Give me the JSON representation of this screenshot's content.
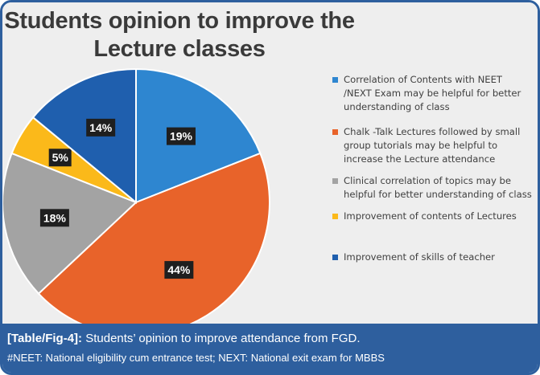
{
  "chart_data": {
    "type": "pie",
    "title": "Students opinion to improve the Lecture classes",
    "legend_position": "right",
    "slices": [
      {
        "label": "Correlation of Contents with NEET /NEXT Exam may be helpful for better understanding of class",
        "value": 19,
        "value_label": "19%",
        "color": "#2e86d0"
      },
      {
        "label": "Chalk -Talk Lectures followed by small group tutorials may be helpful to increase the Lecture attendance",
        "value": 44,
        "value_label": "44%",
        "color": "#e8632a"
      },
      {
        "label": "Clinical correlation of topics may be helpful for better understanding of class",
        "value": 18,
        "value_label": "18%",
        "color": "#a3a3a3"
      },
      {
        "label": "Improvement of contents of Lectures",
        "value": 5,
        "value_label": "5%",
        "color": "#fbb91a"
      },
      {
        "label": "Improvement of skills of teacher",
        "value": 14,
        "value_label": "14%",
        "color": "#1f5fae"
      }
    ]
  },
  "caption": {
    "tag": "[Table/Fig-4]:",
    "text": " Students’ opinion to improve attendance from FGD.",
    "footnote": "#NEET: National eligibility cum entrance test; NEXT: National exit exam for MBBS"
  },
  "colors": {
    "frame": "#2e5f9e",
    "chart_background": "#eeeeee",
    "label_box": "#1f1f1f"
  }
}
